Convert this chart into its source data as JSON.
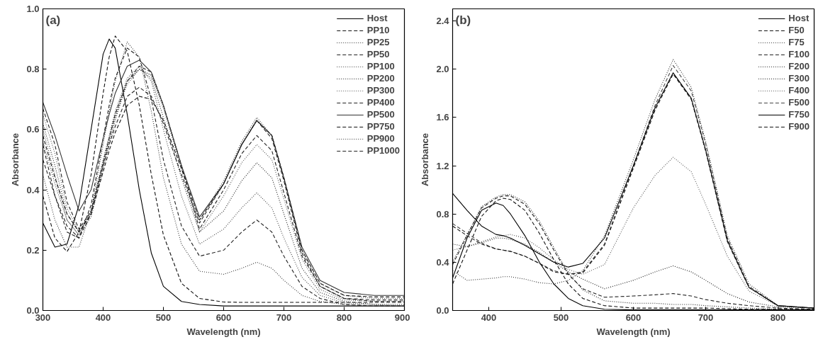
{
  "chart_data": [
    {
      "type": "line",
      "xlabel": "Wavelength (nm)",
      "ylabel": "Absorbance",
      "annotations": [
        "(a)"
      ],
      "x": [
        300,
        320,
        340,
        360,
        380,
        400,
        410,
        420,
        440,
        460,
        480,
        500,
        530,
        560,
        600,
        630,
        655,
        680,
        700,
        730,
        760,
        800,
        850,
        900
      ],
      "xlim": [
        300,
        900
      ],
      "xticks": [
        300,
        400,
        500,
        600,
        700,
        800,
        900
      ],
      "ylim": [
        0,
        1
      ],
      "yticks": [
        {
          "value": 0,
          "label": "0.0"
        },
        {
          "value": 0.2,
          "label": "0.2"
        },
        {
          "value": 0.4,
          "label": "0.4"
        },
        {
          "value": 0.6,
          "label": "0.6"
        },
        {
          "value": 0.8,
          "label": "0.8"
        },
        {
          "value": 1,
          "label": "1.0"
        }
      ],
      "grid": false,
      "legend": "top right",
      "marker": "none",
      "series": [
        {
          "name": "Host",
          "color": "#000000",
          "line_style": "solid",
          "values": [
            0.29,
            0.21,
            0.22,
            0.35,
            0.6,
            0.85,
            0.9,
            0.87,
            0.65,
            0.4,
            0.19,
            0.08,
            0.03,
            0.02,
            0.015,
            0.015,
            0.015,
            0.015,
            0.015,
            0.015,
            0.015,
            0.015,
            0.015,
            0.015
          ]
        },
        {
          "name": "PP10",
          "color": "#111111",
          "line_style": "dashed",
          "values": [
            0.38,
            0.24,
            0.195,
            0.26,
            0.45,
            0.72,
            0.84,
            0.91,
            0.86,
            0.68,
            0.45,
            0.25,
            0.09,
            0.04,
            0.028,
            0.027,
            0.027,
            0.027,
            0.027,
            0.027,
            0.027,
            0.027,
            0.027,
            0.027
          ]
        },
        {
          "name": "PP25",
          "color": "#333333",
          "line_style": "dotted",
          "values": [
            0.45,
            0.3,
            0.21,
            0.21,
            0.33,
            0.55,
            0.66,
            0.76,
            0.89,
            0.84,
            0.66,
            0.44,
            0.22,
            0.13,
            0.12,
            0.14,
            0.16,
            0.14,
            0.1,
            0.05,
            0.03,
            0.02,
            0.015,
            0.015
          ]
        },
        {
          "name": "PP50",
          "color": "#222222",
          "line_style": "dashed",
          "values": [
            0.55,
            0.38,
            0.26,
            0.24,
            0.35,
            0.57,
            0.68,
            0.77,
            0.87,
            0.84,
            0.7,
            0.5,
            0.28,
            0.18,
            0.2,
            0.26,
            0.3,
            0.26,
            0.18,
            0.08,
            0.04,
            0.02,
            0.015,
            0.015
          ]
        },
        {
          "name": "PP100",
          "color": "#444444",
          "line_style": "dotted",
          "values": [
            0.6,
            0.45,
            0.3,
            0.25,
            0.33,
            0.5,
            0.58,
            0.66,
            0.77,
            0.81,
            0.76,
            0.6,
            0.38,
            0.22,
            0.27,
            0.34,
            0.39,
            0.34,
            0.24,
            0.11,
            0.05,
            0.025,
            0.02,
            0.015
          ]
        },
        {
          "name": "PP200",
          "color": "#222222",
          "line_style": "dotted",
          "values": [
            0.62,
            0.48,
            0.32,
            0.26,
            0.33,
            0.49,
            0.57,
            0.65,
            0.76,
            0.8,
            0.77,
            0.64,
            0.44,
            0.26,
            0.33,
            0.43,
            0.49,
            0.44,
            0.32,
            0.14,
            0.06,
            0.03,
            0.02,
            0.02
          ]
        },
        {
          "name": "PP300",
          "color": "#555555",
          "line_style": "dotted",
          "values": [
            0.65,
            0.52,
            0.34,
            0.26,
            0.32,
            0.48,
            0.56,
            0.64,
            0.75,
            0.8,
            0.78,
            0.67,
            0.47,
            0.26,
            0.38,
            0.49,
            0.55,
            0.5,
            0.37,
            0.17,
            0.07,
            0.035,
            0.03,
            0.03
          ]
        },
        {
          "name": "PP400",
          "color": "#222222",
          "line_style": "dashed",
          "values": [
            0.67,
            0.55,
            0.36,
            0.27,
            0.33,
            0.49,
            0.57,
            0.65,
            0.76,
            0.81,
            0.79,
            0.68,
            0.48,
            0.27,
            0.4,
            0.52,
            0.58,
            0.53,
            0.39,
            0.18,
            0.08,
            0.04,
            0.035,
            0.035
          ]
        },
        {
          "name": "PP500",
          "color": "#333333",
          "line_style": "solid",
          "values": [
            0.69,
            0.58,
            0.45,
            0.33,
            0.4,
            0.57,
            0.65,
            0.72,
            0.81,
            0.83,
            0.79,
            0.68,
            0.48,
            0.31,
            0.42,
            0.55,
            0.63,
            0.58,
            0.44,
            0.21,
            0.1,
            0.06,
            0.05,
            0.05
          ]
        },
        {
          "name": "PP750",
          "color": "#111111",
          "line_style": "dashed",
          "values": [
            0.58,
            0.44,
            0.32,
            0.26,
            0.32,
            0.46,
            0.53,
            0.59,
            0.68,
            0.71,
            0.7,
            0.63,
            0.47,
            0.3,
            0.42,
            0.55,
            0.63,
            0.58,
            0.44,
            0.2,
            0.09,
            0.05,
            0.045,
            0.045
          ]
        },
        {
          "name": "PP900",
          "color": "#333333",
          "line_style": "dotted",
          "values": [
            0.56,
            0.42,
            0.3,
            0.25,
            0.31,
            0.47,
            0.55,
            0.63,
            0.76,
            0.8,
            0.78,
            0.68,
            0.48,
            0.3,
            0.43,
            0.56,
            0.64,
            0.58,
            0.44,
            0.2,
            0.09,
            0.05,
            0.04,
            0.04
          ]
        },
        {
          "name": "PP1000",
          "color": "#222222",
          "line_style": "dashed",
          "values": [
            0.5,
            0.38,
            0.28,
            0.24,
            0.32,
            0.48,
            0.55,
            0.61,
            0.71,
            0.74,
            0.71,
            0.62,
            0.45,
            0.29,
            0.42,
            0.55,
            0.63,
            0.57,
            0.43,
            0.19,
            0.08,
            0.04,
            0.03,
            0.03
          ]
        }
      ]
    },
    {
      "type": "line",
      "xlabel": "Wavelength (nm)",
      "ylabel": "Absorbance",
      "annotations": [
        "(b)"
      ],
      "x": [
        350,
        370,
        390,
        410,
        420,
        430,
        450,
        470,
        490,
        510,
        530,
        560,
        600,
        630,
        655,
        680,
        700,
        730,
        760,
        800,
        850
      ],
      "xlim": [
        350,
        850
      ],
      "xticks": [
        400,
        500,
        600,
        700,
        800
      ],
      "ylim": [
        0,
        2.5
      ],
      "yticks": [
        {
          "value": 0,
          "label": "0.0"
        },
        {
          "value": 0.4,
          "label": "0.4"
        },
        {
          "value": 0.8,
          "label": "0.8"
        },
        {
          "value": 1.2,
          "label": "1.2"
        },
        {
          "value": 1.6,
          "label": "1.6"
        },
        {
          "value": 2.0,
          "label": "2.0"
        },
        {
          "value": 2.4,
          "label": "2.4"
        }
      ],
      "grid": false,
      "legend": "top right",
      "marker": "none",
      "series": [
        {
          "name": "Host",
          "color": "#000000",
          "line_style": "solid",
          "values": [
            0.27,
            0.6,
            0.83,
            0.89,
            0.87,
            0.8,
            0.62,
            0.4,
            0.22,
            0.1,
            0.04,
            0.01,
            0.005,
            0.005,
            0.005,
            0.005,
            0.005,
            0.005,
            0.005,
            0.005,
            0.005
          ]
        },
        {
          "name": "F50",
          "color": "#111111",
          "line_style": "dashed",
          "values": [
            0.22,
            0.5,
            0.78,
            0.91,
            0.93,
            0.92,
            0.83,
            0.64,
            0.42,
            0.22,
            0.1,
            0.04,
            0.02,
            0.02,
            0.02,
            0.02,
            0.02,
            0.015,
            0.01,
            0.01,
            0.01
          ]
        },
        {
          "name": "F75",
          "color": "#333333",
          "line_style": "dotted",
          "values": [
            0.33,
            0.25,
            0.26,
            0.27,
            0.28,
            0.28,
            0.26,
            0.23,
            0.22,
            0.25,
            0.33,
            0.62,
            1.25,
            1.75,
            2.08,
            1.85,
            1.4,
            0.62,
            0.22,
            0.04,
            0.02
          ]
        },
        {
          "name": "F100",
          "color": "#222222",
          "line_style": "dashed",
          "values": [
            0.38,
            0.62,
            0.85,
            0.93,
            0.95,
            0.95,
            0.88,
            0.72,
            0.5,
            0.3,
            0.18,
            0.11,
            0.12,
            0.13,
            0.14,
            0.12,
            0.09,
            0.06,
            0.04,
            0.02,
            0.01
          ]
        },
        {
          "name": "F200",
          "color": "#222222",
          "line_style": "dotted",
          "values": [
            0.4,
            0.63,
            0.86,
            0.94,
            0.96,
            0.96,
            0.9,
            0.74,
            0.52,
            0.31,
            0.17,
            0.08,
            0.06,
            0.06,
            0.05,
            0.05,
            0.04,
            0.03,
            0.02,
            0.01,
            0.01
          ]
        },
        {
          "name": "F300",
          "color": "#111111",
          "line_style": "dotted",
          "values": [
            0.55,
            0.53,
            0.56,
            0.6,
            0.6,
            0.59,
            0.55,
            0.48,
            0.4,
            0.32,
            0.26,
            0.18,
            0.25,
            0.32,
            0.37,
            0.32,
            0.25,
            0.14,
            0.07,
            0.03,
            0.02
          ]
        },
        {
          "name": "F400",
          "color": "#555555",
          "line_style": "dotted",
          "values": [
            0.5,
            0.53,
            0.57,
            0.61,
            0.62,
            0.63,
            0.6,
            0.52,
            0.42,
            0.34,
            0.3,
            0.38,
            0.85,
            1.12,
            1.27,
            1.15,
            0.88,
            0.45,
            0.16,
            0.04,
            0.02
          ]
        },
        {
          "name": "F500",
          "color": "#444444",
          "line_style": "dashed",
          "values": [
            0.72,
            0.64,
            0.56,
            0.51,
            0.5,
            0.49,
            0.45,
            0.39,
            0.33,
            0.3,
            0.32,
            0.55,
            1.2,
            1.7,
            2.03,
            1.82,
            1.38,
            0.6,
            0.2,
            0.04,
            0.02
          ]
        },
        {
          "name": "F750",
          "color": "#000000",
          "line_style": "solid",
          "values": [
            0.97,
            0.83,
            0.7,
            0.63,
            0.62,
            0.6,
            0.54,
            0.47,
            0.4,
            0.36,
            0.39,
            0.6,
            1.2,
            1.68,
            1.97,
            1.76,
            1.33,
            0.58,
            0.19,
            0.04,
            0.02
          ]
        },
        {
          "name": "F900",
          "color": "#111111",
          "line_style": "dashed",
          "values": [
            0.7,
            0.62,
            0.55,
            0.51,
            0.5,
            0.49,
            0.45,
            0.39,
            0.32,
            0.3,
            0.31,
            0.54,
            1.18,
            1.66,
            1.96,
            1.75,
            1.32,
            0.57,
            0.19,
            0.04,
            0.02
          ]
        }
      ]
    }
  ]
}
